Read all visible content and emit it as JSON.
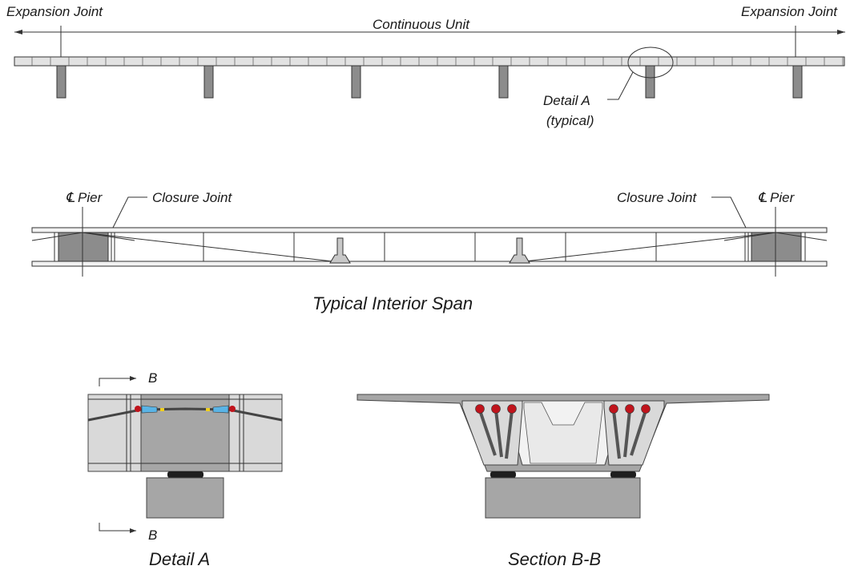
{
  "elevation": {
    "expansion_joint_left": "Expansion Joint",
    "expansion_joint_right": "Expansion Joint",
    "continuous_unit": "Continuous Unit",
    "detail_a_callout": "Detail A",
    "detail_a_typical": "(typical)"
  },
  "interior_span": {
    "pier_left_label": "Pier",
    "pier_right_label": "Pier",
    "closure_joint_left": "Closure Joint",
    "closure_joint_right": "Closure Joint",
    "centerline_symbol": "℄",
    "title": "Typical Interior Span"
  },
  "detail_a": {
    "section_mark_top": "B",
    "section_mark_bottom": "B",
    "title": "Detail A"
  },
  "section_bb": {
    "title": "Section B-B"
  },
  "colors": {
    "pier": "#8c8c8c",
    "tendon_anchor_red": "#c0141c",
    "anchor_blue": "#5ab4e6",
    "anchor_yellow": "#f0d020",
    "concrete": "#a6a6a6"
  }
}
